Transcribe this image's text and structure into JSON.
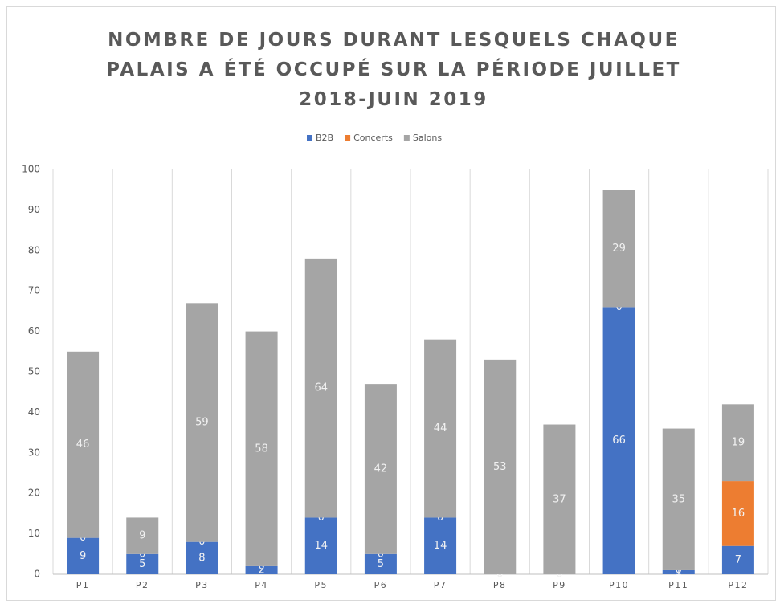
{
  "chart_data": {
    "type": "stacked_bar",
    "title": "NOMBRE DE JOURS DURANT LESQUELS CHAQUE PALAIS A ÉTÉ OCCUPÉ SUR LA PÉRIODE JUILLET 2018-JUIN 2019",
    "categories": [
      "P1",
      "P2",
      "P3",
      "P4",
      "P5",
      "P6",
      "P7",
      "P8",
      "P9",
      "P10",
      "P11",
      "P12"
    ],
    "series": [
      {
        "name": "B2B",
        "color": "#4472c4",
        "values": [
          9,
          5,
          8,
          2,
          14,
          5,
          14,
          0,
          0,
          66,
          1,
          7
        ]
      },
      {
        "name": "Concerts",
        "color": "#ed7d31",
        "values": [
          0,
          0,
          0,
          0,
          0,
          0,
          0,
          0,
          0,
          0,
          0,
          16
        ]
      },
      {
        "name": "Salons",
        "color": "#a5a5a5",
        "values": [
          46,
          9,
          59,
          58,
          64,
          42,
          44,
          53,
          37,
          29,
          35,
          19
        ]
      }
    ],
    "ylim": [
      0,
      100
    ],
    "yticks": [
      0,
      10,
      20,
      30,
      40,
      50,
      60,
      70,
      80,
      90,
      100
    ],
    "legend": "top",
    "category_separators": true,
    "data_labels": true
  }
}
